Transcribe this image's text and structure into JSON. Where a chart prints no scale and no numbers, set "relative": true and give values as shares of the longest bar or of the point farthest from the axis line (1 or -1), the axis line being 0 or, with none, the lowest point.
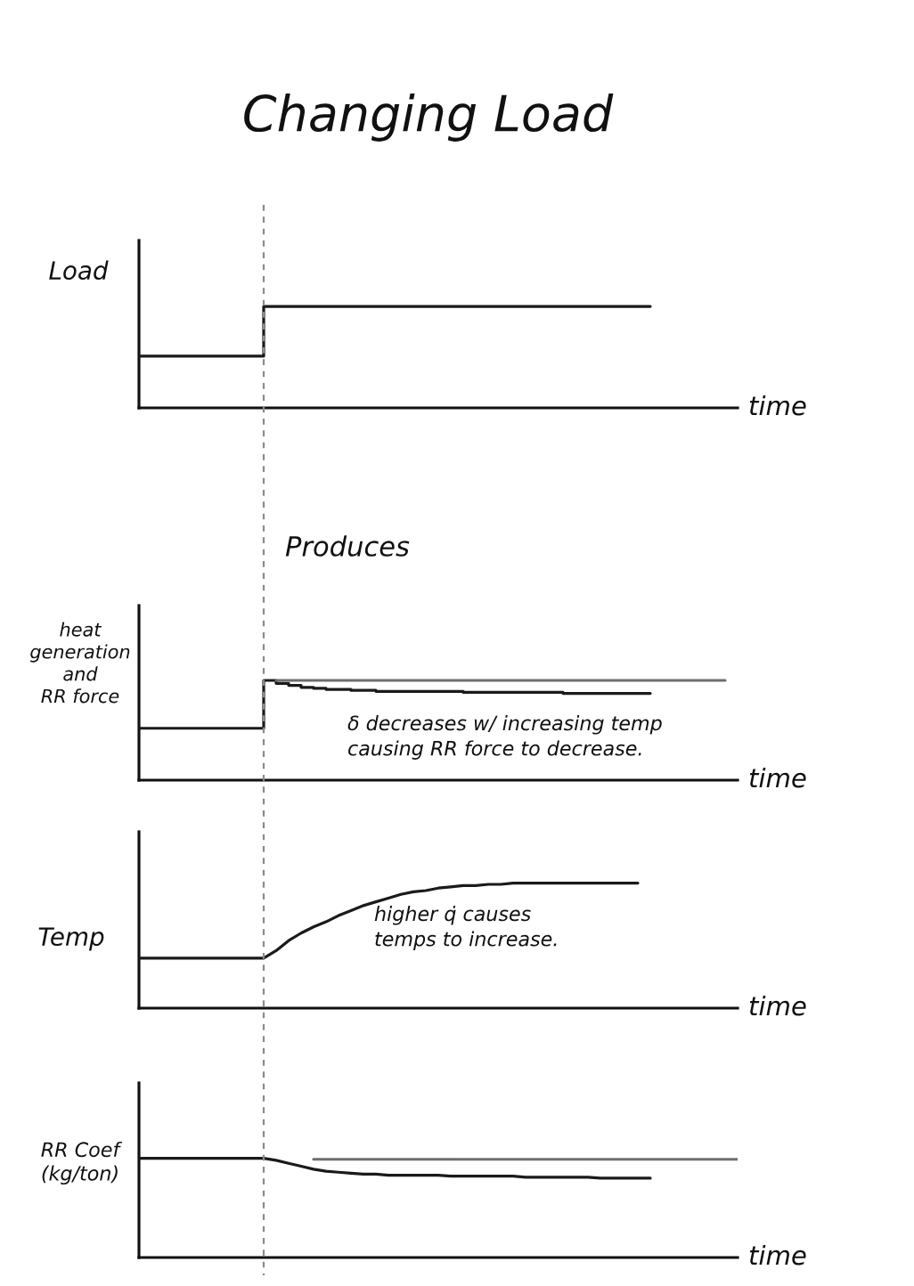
{
  "chart_data": [
    {
      "type": "step",
      "title": "Changing Load",
      "ylabel": "Load",
      "xlabel": "time",
      "relative": true,
      "categories": [
        null,
        null,
        null,
        null,
        null,
        null,
        null,
        null,
        null,
        null,
        null,
        null,
        null,
        null,
        null,
        null,
        null,
        null,
        null,
        null,
        null,
        null,
        null,
        null,
        null,
        null,
        null,
        null,
        null,
        null,
        null,
        null,
        null,
        null,
        null,
        null,
        null,
        null,
        null,
        null,
        null,
        null,
        null,
        null,
        null,
        null,
        null,
        null,
        null
      ],
      "series": [
        {
          "color": "#1a1a1a",
          "values": [
            0.51,
            0.51,
            0.51,
            0.51,
            0.51,
            0.51,
            0.51,
            0.51,
            0.51,
            0.51,
            1,
            1,
            1,
            1,
            1,
            1,
            1,
            1,
            1,
            1,
            1,
            1,
            1,
            1,
            1,
            1,
            1,
            1,
            1,
            1,
            1,
            1,
            1,
            1,
            1,
            1,
            1,
            1,
            1,
            1,
            1,
            1,
            null,
            null,
            null,
            null,
            null,
            null,
            null
          ]
        }
      ]
    },
    {
      "type": "line",
      "title": "Produces",
      "ylabel": "heat\ngeneration\nand\nRR force",
      "xlabel": "time",
      "relative": true,
      "categories": [
        null,
        null,
        null,
        null,
        null,
        null,
        null,
        null,
        null,
        null,
        null,
        null,
        null,
        null,
        null,
        null,
        null,
        null,
        null,
        null,
        null,
        null,
        null,
        null,
        null,
        null,
        null,
        null,
        null,
        null,
        null,
        null,
        null,
        null,
        null,
        null,
        null,
        null,
        null,
        null,
        null,
        null,
        null,
        null,
        null,
        null,
        null,
        null,
        null
      ],
      "series": [
        {
          "type": "step",
          "color": "#1a1a1a",
          "values": [
            0.52,
            0.52,
            0.52,
            0.52,
            0.52,
            0.52,
            0.52,
            0.52,
            0.52,
            0.52,
            1,
            0.97,
            0.95,
            0.93,
            0.92,
            0.91,
            0.91,
            0.9,
            0.9,
            0.89,
            0.89,
            0.89,
            0.89,
            0.89,
            0.89,
            0.89,
            0.88,
            0.88,
            0.88,
            0.88,
            0.88,
            0.88,
            0.88,
            0.88,
            0.87,
            0.87,
            0.87,
            0.87,
            0.87,
            0.87,
            0.87,
            0.87,
            null,
            null,
            null,
            null,
            null,
            null,
            null
          ]
        },
        {
          "color": "#6e6e6e",
          "values": [
            null,
            null,
            null,
            null,
            null,
            null,
            null,
            null,
            null,
            null,
            null,
            1,
            1,
            1,
            1,
            1,
            1,
            1,
            1,
            1,
            1,
            1,
            1,
            1,
            1,
            1,
            1,
            1,
            1,
            1,
            1,
            1,
            1,
            1,
            1,
            1,
            1,
            1,
            1,
            1,
            1,
            1,
            1,
            1,
            1,
            1,
            1,
            1,
            null
          ]
        }
      ],
      "annotations": [
        "δ decreases w/ increasing temp\ncausing RR force to decrease."
      ]
    },
    {
      "type": "line",
      "ylabel": "Temp",
      "xlabel": "time",
      "relative": true,
      "categories": [
        null,
        null,
        null,
        null,
        null,
        null,
        null,
        null,
        null,
        null,
        null,
        null,
        null,
        null,
        null,
        null,
        null,
        null,
        null,
        null,
        null,
        null,
        null,
        null,
        null,
        null,
        null,
        null,
        null,
        null,
        null,
        null,
        null,
        null,
        null,
        null,
        null,
        null,
        null,
        null,
        null,
        null,
        null,
        null,
        null,
        null,
        null,
        null,
        null
      ],
      "series": [
        {
          "color": "#1a1a1a",
          "values": [
            0.4,
            0.4,
            0.4,
            0.4,
            0.4,
            0.4,
            0.4,
            0.4,
            0.4,
            0.4,
            0.4,
            0.46,
            0.54,
            0.6,
            0.65,
            0.69,
            0.74,
            0.78,
            0.82,
            0.85,
            0.88,
            0.91,
            0.93,
            0.94,
            0.96,
            0.97,
            0.98,
            0.98,
            0.99,
            0.99,
            1,
            1,
            1,
            1,
            1,
            1,
            1,
            1,
            1,
            1,
            1,
            null,
            null,
            null,
            null,
            null,
            null,
            null,
            null
          ]
        }
      ],
      "annotations": [
        "higher q̇ causes\ntemps to increase."
      ]
    },
    {
      "type": "line",
      "ylabel": "RR Coef\n(kg/ton)",
      "xlabel": "time",
      "relative": true,
      "categories": [
        null,
        null,
        null,
        null,
        null,
        null,
        null,
        null,
        null,
        null,
        null,
        null,
        null,
        null,
        null,
        null,
        null,
        null,
        null,
        null,
        null,
        null,
        null,
        null,
        null,
        null,
        null,
        null,
        null,
        null,
        null,
        null,
        null,
        null,
        null,
        null,
        null,
        null,
        null,
        null,
        null,
        null,
        null,
        null,
        null,
        null,
        null,
        null,
        null
      ],
      "series": [
        {
          "color": "#1a1a1a",
          "values": [
            1,
            1,
            1,
            1,
            1,
            1,
            1,
            1,
            1,
            1,
            1,
            0.98,
            0.95,
            0.92,
            0.89,
            0.87,
            0.86,
            0.85,
            0.84,
            0.84,
            0.83,
            0.83,
            0.83,
            0.83,
            0.83,
            0.82,
            0.82,
            0.82,
            0.82,
            0.82,
            0.82,
            0.81,
            0.81,
            0.81,
            0.81,
            0.81,
            0.81,
            0.8,
            0.8,
            0.8,
            0.8,
            0.8,
            null,
            null,
            null,
            null,
            null,
            null,
            null
          ]
        },
        {
          "color": "#6e6e6e",
          "values": [
            null,
            null,
            null,
            null,
            null,
            null,
            null,
            null,
            null,
            null,
            null,
            null,
            null,
            null,
            0.99,
            0.99,
            0.99,
            0.99,
            0.99,
            0.99,
            0.99,
            0.99,
            0.99,
            0.99,
            0.99,
            0.99,
            0.99,
            0.99,
            0.99,
            0.99,
            0.99,
            0.99,
            0.99,
            0.99,
            0.99,
            0.99,
            0.99,
            0.99,
            0.99,
            0.99,
            0.99,
            0.99,
            0.99,
            0.99,
            0.99,
            0.99,
            0.99,
            0.99,
            0.99
          ]
        }
      ]
    }
  ]
}
